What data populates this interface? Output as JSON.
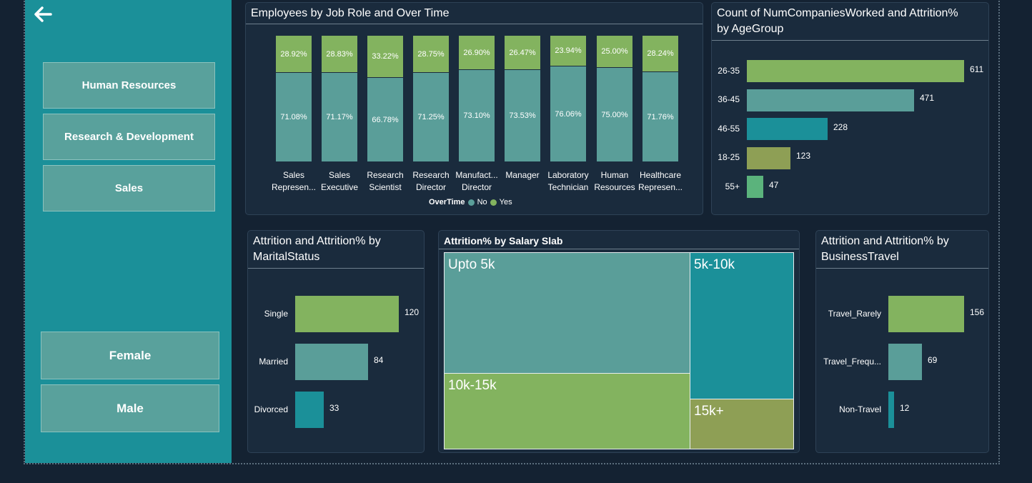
{
  "nav": {
    "back_icon": "back-arrow-icon"
  },
  "departments": [
    {
      "label": "Human Resources"
    },
    {
      "label": "Research & Development"
    },
    {
      "label": "Sales"
    }
  ],
  "genders": [
    {
      "label": "Female"
    },
    {
      "label": "Male"
    }
  ],
  "colors": {
    "background": "#142232",
    "sidebar": "#1b9099",
    "panel": "#1a2b3d",
    "no": "#5a9e99",
    "yes": "#83b35f",
    "teal": "#1b9099",
    "olive": "#8e9f55",
    "green": "#5bb37c"
  },
  "job_role_chart": {
    "title": "Employees by Job Role and Over Time",
    "legend": {
      "title": "OverTime",
      "no": "No",
      "yes": "Yes"
    },
    "roles": [
      {
        "line1": "Sales",
        "line2": "Represen...",
        "no_label": "71.08%",
        "yes_label": "28.92%"
      },
      {
        "line1": "Sales",
        "line2": "Executive",
        "no_label": "71.17%",
        "yes_label": "28.83%"
      },
      {
        "line1": "Research",
        "line2": "Scientist",
        "no_label": "66.78%",
        "yes_label": "33.22%"
      },
      {
        "line1": "Research",
        "line2": "Director",
        "no_label": "71.25%",
        "yes_label": "28.75%"
      },
      {
        "line1": "Manufact...",
        "line2": "Director",
        "no_label": "73.10%",
        "yes_label": "26.90%"
      },
      {
        "line1": "Manager",
        "line2": "",
        "no_label": "73.53%",
        "yes_label": "26.47%"
      },
      {
        "line1": "Laboratory",
        "line2": "Technician",
        "no_label": "76.06%",
        "yes_label": "23.94%"
      },
      {
        "line1": "Human",
        "line2": "Resources",
        "no_label": "75.00%",
        "yes_label": "25.00%"
      },
      {
        "line1": "Healthcare",
        "line2": "Represen...",
        "no_label": "71.76%",
        "yes_label": "28.24%"
      }
    ]
  },
  "age_chart": {
    "title_line1": "Count of NumCompaniesWorked and Attrition%",
    "title_line2": "by AgeGroup",
    "bars": [
      {
        "label": "26-35",
        "value": "611",
        "color": "#83b35f"
      },
      {
        "label": "36-45",
        "value": "471",
        "color": "#5a9e99"
      },
      {
        "label": "46-55",
        "value": "228",
        "color": "#1b9099"
      },
      {
        "label": "18-25",
        "value": "123",
        "color": "#8e9f55"
      },
      {
        "label": "55+",
        "value": "47",
        "color": "#5bb37c"
      }
    ]
  },
  "marital_chart": {
    "title_line1": "Attrition and Attrition% by",
    "title_line2": "MaritalStatus",
    "bars": [
      {
        "label": "Single",
        "value": "120",
        "color": "#83b35f"
      },
      {
        "label": "Married",
        "value": "84",
        "color": "#5a9e99"
      },
      {
        "label": "Divorced",
        "value": "33",
        "color": "#1b9099"
      }
    ]
  },
  "salary_chart": {
    "title": "Attrition% by Salary Slab",
    "tiles": [
      {
        "label": "Upto 5k",
        "color": "#5a9e99"
      },
      {
        "label": "5k-10k",
        "color": "#1b9099"
      },
      {
        "label": "10k-15k",
        "color": "#83b35f"
      },
      {
        "label": "15k+",
        "color": "#8e9f55"
      }
    ]
  },
  "travel_chart": {
    "title_line1": "Attrition and Attrition% by",
    "title_line2": "BusinessTravel",
    "bars": [
      {
        "label": "Travel_Rarely",
        "value": "156",
        "color": "#83b35f"
      },
      {
        "label": "Travel_Frequ...",
        "value": "69",
        "color": "#5a9e99"
      },
      {
        "label": "Non-Travel",
        "value": "12",
        "color": "#1b9099"
      }
    ]
  }
}
